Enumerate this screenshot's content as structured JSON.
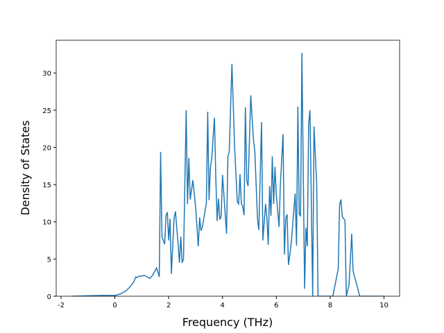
{
  "chart_data": {
    "type": "line",
    "x_label": "Frequency (THz)",
    "y_label": "Density of States",
    "x": [
      -1.6,
      -0.5,
      0.0,
      0.2,
      0.4,
      0.55,
      0.7,
      0.78,
      0.82,
      0.9,
      1.0,
      1.1,
      1.2,
      1.3,
      1.4,
      1.55,
      1.65,
      1.7,
      1.75,
      1.85,
      1.9,
      1.95,
      2.0,
      2.05,
      2.1,
      2.2,
      2.25,
      2.35,
      2.4,
      2.45,
      2.5,
      2.55,
      2.65,
      2.7,
      2.75,
      2.8,
      2.9,
      3.0,
      3.1,
      3.15,
      3.2,
      3.25,
      3.4,
      3.45,
      3.5,
      3.55,
      3.6,
      3.7,
      3.75,
      3.8,
      3.85,
      3.9,
      3.95,
      4.0,
      4.1,
      4.15,
      4.2,
      4.25,
      4.35,
      4.45,
      4.55,
      4.6,
      4.65,
      4.7,
      4.75,
      4.8,
      4.85,
      4.9,
      4.95,
      5.05,
      5.15,
      5.2,
      5.3,
      5.35,
      5.45,
      5.5,
      5.55,
      5.6,
      5.65,
      5.7,
      5.75,
      5.8,
      5.85,
      5.9,
      5.95,
      6.0,
      6.1,
      6.15,
      6.25,
      6.3,
      6.35,
      6.4,
      6.45,
      6.55,
      6.7,
      6.75,
      6.8,
      6.85,
      6.9,
      6.95,
      7.05,
      7.1,
      7.15,
      7.2,
      7.25,
      7.35,
      7.4,
      7.5,
      7.55,
      8.1,
      8.3,
      8.35,
      8.4,
      8.45,
      8.55,
      8.6,
      8.7,
      8.8,
      8.85,
      9.1,
      10.0
    ],
    "series": [
      {
        "name": "DOS",
        "color": "#1f77b4",
        "values": [
          0,
          0.1,
          0.1,
          0.3,
          0.7,
          1.2,
          1.9,
          2.6,
          2.5,
          2.7,
          2.7,
          2.8,
          2.6,
          2.4,
          2.8,
          3.8,
          2.6,
          19.4,
          8,
          7,
          10.8,
          11.3,
          7.5,
          10.4,
          3,
          10.5,
          11.4,
          7,
          4.5,
          8,
          4.5,
          5,
          25,
          12.4,
          18.6,
          13,
          15.6,
          12,
          6.7,
          10.6,
          8.8,
          9.3,
          12.5,
          24.8,
          12.9,
          17.3,
          18.5,
          24,
          16,
          10.1,
          13.1,
          10.3,
          10.8,
          16.3,
          11,
          8.4,
          18.8,
          19.4,
          31.2,
          20,
          12.7,
          12.4,
          16.4,
          12.4,
          12.1,
          10.9,
          25.4,
          15.5,
          14.8,
          27,
          21,
          19.5,
          10.4,
          8.9,
          23.4,
          7.5,
          10,
          12.4,
          10.4,
          6.9,
          14.8,
          10.8,
          18.8,
          12.4,
          17.4,
          13.6,
          9.3,
          15,
          21.8,
          5.6,
          10.5,
          11,
          4.2,
          7,
          13.8,
          6.8,
          25.5,
          11,
          10.8,
          32.7,
          1,
          9.2,
          6.7,
          23.2,
          25,
          0,
          22.8,
          15,
          0,
          0,
          3.7,
          12.3,
          13,
          10.7,
          10.2,
          0,
          1.5,
          8.4,
          3.4,
          0,
          0
        ]
      }
    ],
    "xlim": [
      -2.18,
      10.58
    ],
    "ylim": [
      0,
      34.4
    ],
    "xticks": [
      -2,
      0,
      2,
      4,
      6,
      8,
      10
    ],
    "yticks": [
      0,
      5,
      10,
      15,
      20,
      25,
      30
    ]
  }
}
